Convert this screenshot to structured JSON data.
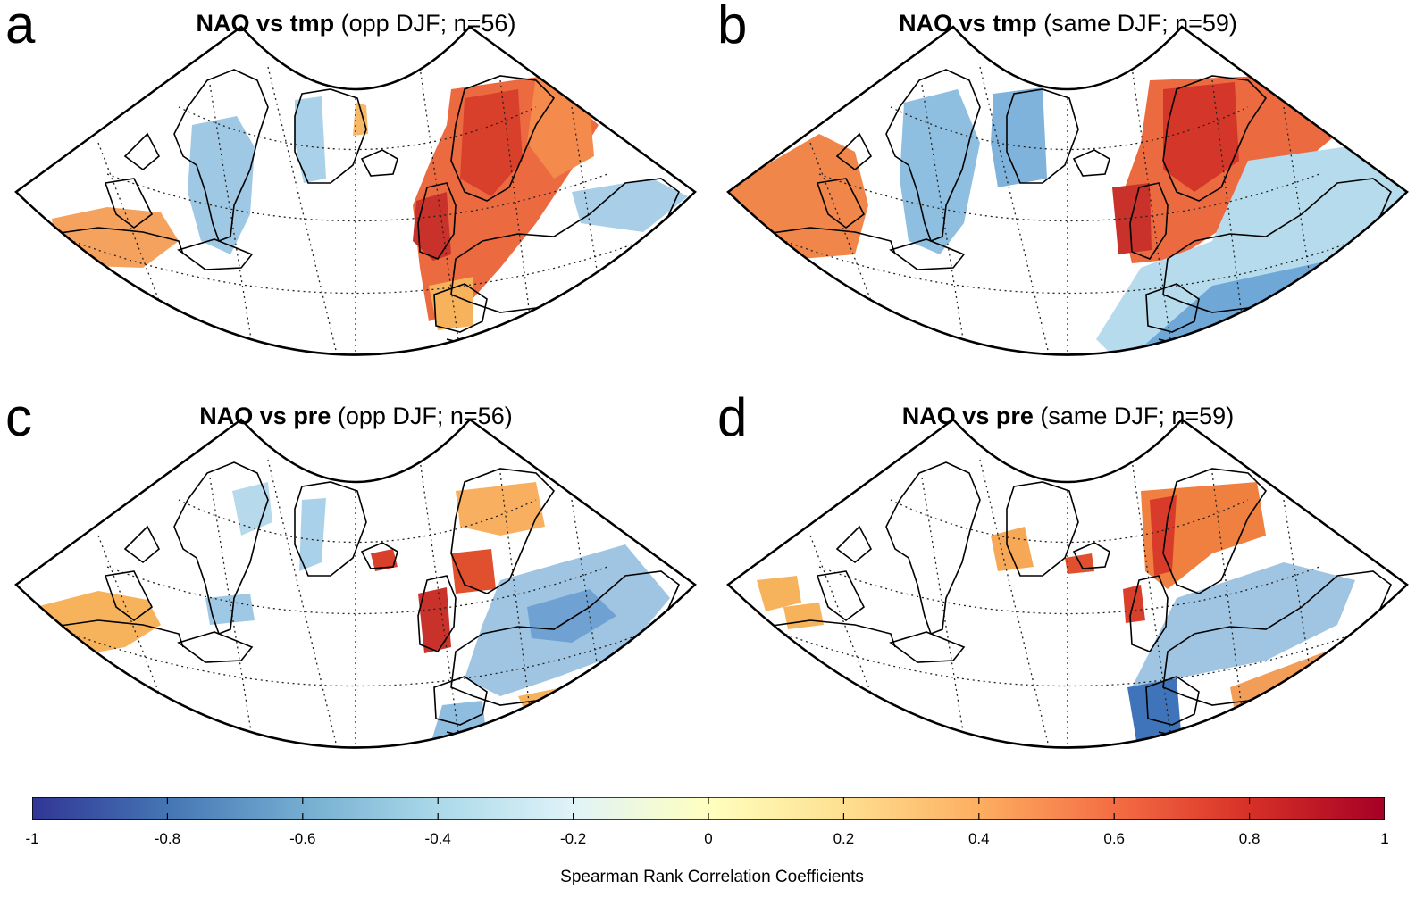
{
  "panels": [
    {
      "id": "a",
      "letter": "a",
      "variable": "NAO vs tmp",
      "detail": "(opp DJF; n=56)"
    },
    {
      "id": "b",
      "letter": "b",
      "variable": "NAO vs tmp",
      "detail": "(same DJF; n=59)"
    },
    {
      "id": "c",
      "letter": "c",
      "variable": "NAO vs pre",
      "detail": "(opp DJF; n=56)"
    },
    {
      "id": "d",
      "letter": "d",
      "variable": "NAO vs pre",
      "detail": "(same DJF; n=59)"
    }
  ],
  "colorbar": {
    "label": "Spearman Rank Correlation Coefficients",
    "min": -1,
    "max": 1,
    "ticks": [
      "-1",
      "-0.8",
      "-0.6",
      "-0.4",
      "-0.2",
      "0",
      "0.2",
      "0.4",
      "0.6",
      "0.8",
      "1"
    ],
    "colors": [
      "#313695",
      "#4575b4",
      "#74add1",
      "#abd9e9",
      "#e0f3f8",
      "#ffffbf",
      "#fee090",
      "#fdae61",
      "#f46d43",
      "#d73027",
      "#a50026"
    ]
  }
}
